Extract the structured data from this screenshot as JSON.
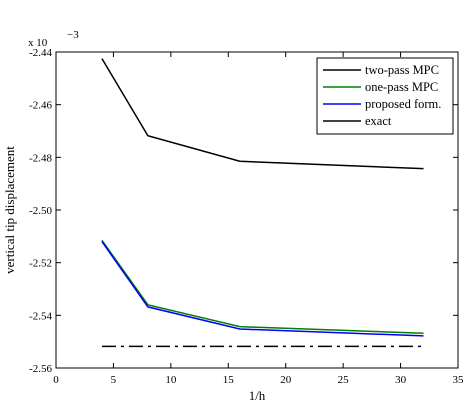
{
  "chart_data": {
    "type": "line",
    "title": "",
    "xlabel": "1/h",
    "ylabel": "vertical tip displacement",
    "y_multiplier": {
      "base": "x 10",
      "exponent": "−3"
    },
    "xlim": [
      0,
      35
    ],
    "ylim": [
      -2.56,
      -2.44
    ],
    "x_ticks": [
      0,
      5,
      10,
      15,
      20,
      25,
      30,
      35
    ],
    "x_tick_labels": [
      "0",
      "5",
      "10",
      "15",
      "20",
      "25",
      "30",
      "35"
    ],
    "y_ticks": [
      -2.56,
      -2.54,
      -2.52,
      -2.5,
      -2.48,
      -2.46,
      -2.44
    ],
    "y_tick_labels": [
      "-2.56",
      "-2.54",
      "-2.52",
      "-2.50",
      "-2.48",
      "-2.46",
      "-2.44"
    ],
    "grid": false,
    "legend_position": "top-right",
    "series": [
      {
        "name": "two-pass MPC",
        "color": "#000000",
        "dash": "solid",
        "x": [
          4,
          8,
          16,
          32
        ],
        "y": [
          -2.4425,
          -2.4718,
          -2.4815,
          -2.4843
        ]
      },
      {
        "name": "one-pass MPC",
        "color": "#008000",
        "dash": "solid",
        "x": [
          4,
          8,
          16,
          32
        ],
        "y": [
          -2.5115,
          -2.536,
          -2.5443,
          -2.5468
        ]
      },
      {
        "name": "proposed form.",
        "color": "#0000ff",
        "dash": "solid",
        "x": [
          4,
          8,
          16,
          32
        ],
        "y": [
          -2.512,
          -2.5368,
          -2.5452,
          -2.5478
        ]
      },
      {
        "name": "exact",
        "color": "#000000",
        "dash": "dashdot",
        "x": [
          4,
          32
        ],
        "y": [
          -2.5518,
          -2.5518
        ]
      }
    ]
  }
}
